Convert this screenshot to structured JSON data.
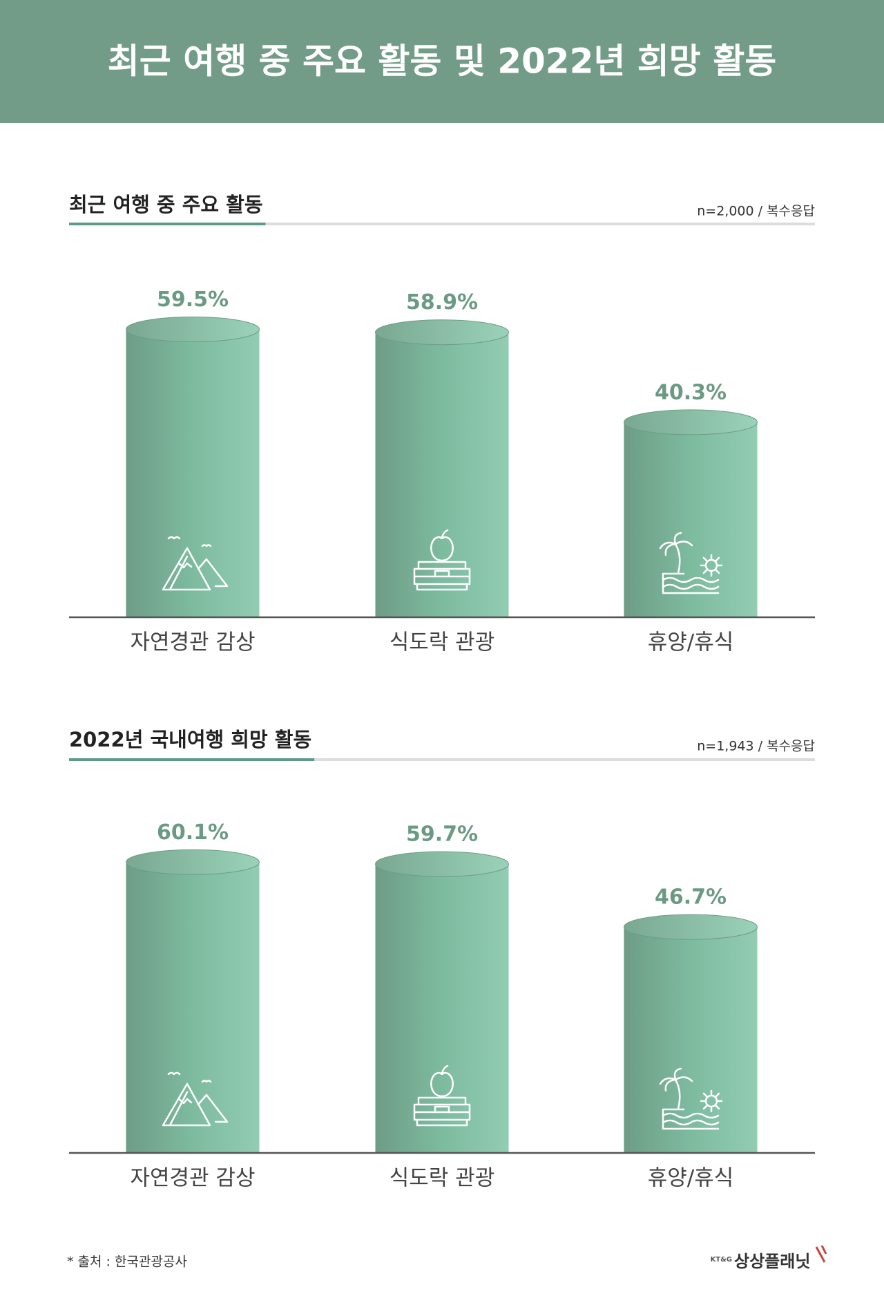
{
  "header": {
    "title": "최근 여행 중 주요 활동 및 2022년 희망 활동"
  },
  "chart_data": [
    {
      "type": "bar",
      "title": "최근 여행 중 주요 활동",
      "note": "n=2,000 / 복수응답",
      "categories": [
        "자연경관 감상",
        "식도락 관광",
        "휴양/휴식"
      ],
      "values": [
        59.5,
        58.9,
        40.3
      ],
      "value_labels": [
        "59.5%",
        "58.9%",
        "40.3%"
      ],
      "ylim": [
        0,
        100
      ]
    },
    {
      "type": "bar",
      "title": "2022년 국내여행 희망 활동",
      "note": "n=1,943 / 복수응답",
      "categories": [
        "자연경관 감상",
        "식도락 관광",
        "휴양/휴식"
      ],
      "values": [
        60.1,
        59.7,
        46.7
      ],
      "value_labels": [
        "60.1%",
        "59.7%",
        "46.7%"
      ],
      "ylim": [
        0,
        100
      ]
    }
  ],
  "footer": {
    "source": "* 출처 : 한국관광공사",
    "brand": "KT&G",
    "logo": "상상플래닛"
  }
}
